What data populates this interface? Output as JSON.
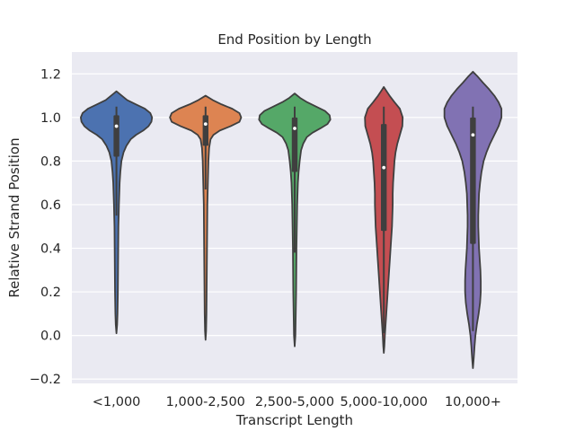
{
  "chart_data": {
    "type": "violin",
    "title": "End Position by Length",
    "xlabel": "Transcript Length",
    "ylabel": "Relative Strand Position",
    "ylim": [
      -0.22,
      1.3
    ],
    "yticks": [
      -0.2,
      0.0,
      0.2,
      0.4,
      0.6,
      0.8,
      1.0,
      1.2
    ],
    "ytick_labels": [
      "−0.2",
      "0.0",
      "0.2",
      "0.4",
      "0.6",
      "0.8",
      "1.0",
      "1.2"
    ],
    "grid": true,
    "background": "#eaeaf2",
    "categories": [
      "<1,000",
      "1,000-2,500",
      "2,500-5,000",
      "5,000-10,000",
      "10,000+"
    ],
    "violins": [
      {
        "category": "<1,000",
        "color": "#4c72b0",
        "min": 0.01,
        "max": 1.12,
        "whisker_low": 0.55,
        "whisker_high": 1.05,
        "q1": 0.82,
        "q3": 1.01,
        "median": 0.96,
        "profile": [
          [
            1.12,
            0.0
          ],
          [
            1.1,
            0.15
          ],
          [
            1.08,
            0.3
          ],
          [
            1.06,
            0.55
          ],
          [
            1.04,
            0.8
          ],
          [
            1.02,
            0.95
          ],
          [
            1.0,
            1.0
          ],
          [
            0.98,
            0.98
          ],
          [
            0.96,
            0.9
          ],
          [
            0.94,
            0.75
          ],
          [
            0.92,
            0.55
          ],
          [
            0.9,
            0.4
          ],
          [
            0.87,
            0.28
          ],
          [
            0.84,
            0.2
          ],
          [
            0.8,
            0.14
          ],
          [
            0.75,
            0.11
          ],
          [
            0.7,
            0.09
          ],
          [
            0.6,
            0.07
          ],
          [
            0.5,
            0.055
          ],
          [
            0.4,
            0.05
          ],
          [
            0.3,
            0.045
          ],
          [
            0.2,
            0.04
          ],
          [
            0.1,
            0.03
          ],
          [
            0.05,
            0.02
          ],
          [
            0.01,
            0.0
          ]
        ]
      },
      {
        "category": "1,000-2,500",
        "color": "#dd8452",
        "min": -0.02,
        "max": 1.1,
        "whisker_low": 0.67,
        "whisker_high": 1.05,
        "q1": 0.87,
        "q3": 1.01,
        "median": 0.97,
        "profile": [
          [
            1.1,
            0.0
          ],
          [
            1.08,
            0.2
          ],
          [
            1.06,
            0.45
          ],
          [
            1.04,
            0.75
          ],
          [
            1.02,
            0.95
          ],
          [
            1.0,
            1.0
          ],
          [
            0.98,
            0.95
          ],
          [
            0.96,
            0.7
          ],
          [
            0.94,
            0.4
          ],
          [
            0.92,
            0.22
          ],
          [
            0.9,
            0.14
          ],
          [
            0.86,
            0.1
          ],
          [
            0.8,
            0.08
          ],
          [
            0.7,
            0.065
          ],
          [
            0.6,
            0.05
          ],
          [
            0.5,
            0.045
          ],
          [
            0.4,
            0.04
          ],
          [
            0.3,
            0.035
          ],
          [
            0.2,
            0.03
          ],
          [
            0.1,
            0.025
          ],
          [
            0.02,
            0.015
          ],
          [
            -0.02,
            0.0
          ]
        ]
      },
      {
        "category": "2,500-5,000",
        "color": "#55a868",
        "min": -0.05,
        "max": 1.11,
        "whisker_low": 0.38,
        "whisker_high": 1.05,
        "q1": 0.75,
        "q3": 1.0,
        "median": 0.95,
        "profile": [
          [
            1.11,
            0.0
          ],
          [
            1.09,
            0.15
          ],
          [
            1.07,
            0.35
          ],
          [
            1.05,
            0.6
          ],
          [
            1.03,
            0.85
          ],
          [
            1.01,
            0.98
          ],
          [
            0.99,
            1.0
          ],
          [
            0.97,
            0.92
          ],
          [
            0.95,
            0.72
          ],
          [
            0.93,
            0.5
          ],
          [
            0.91,
            0.34
          ],
          [
            0.88,
            0.24
          ],
          [
            0.85,
            0.18
          ],
          [
            0.8,
            0.14
          ],
          [
            0.75,
            0.11
          ],
          [
            0.7,
            0.09
          ],
          [
            0.6,
            0.07
          ],
          [
            0.5,
            0.06
          ],
          [
            0.4,
            0.05
          ],
          [
            0.3,
            0.045
          ],
          [
            0.2,
            0.04
          ],
          [
            0.1,
            0.03
          ],
          [
            0.0,
            0.02
          ],
          [
            -0.05,
            0.0
          ]
        ]
      },
      {
        "category": "5,000-10,000",
        "color": "#c44e52",
        "min": -0.08,
        "max": 1.14,
        "whisker_low": 0.01,
        "whisker_high": 1.05,
        "q1": 0.48,
        "q3": 0.97,
        "median": 0.77,
        "profile": [
          [
            1.14,
            0.0
          ],
          [
            1.12,
            0.08
          ],
          [
            1.1,
            0.16
          ],
          [
            1.07,
            0.3
          ],
          [
            1.04,
            0.45
          ],
          [
            1.0,
            0.53
          ],
          [
            0.96,
            0.52
          ],
          [
            0.92,
            0.45
          ],
          [
            0.88,
            0.38
          ],
          [
            0.84,
            0.33
          ],
          [
            0.8,
            0.3
          ],
          [
            0.75,
            0.28
          ],
          [
            0.7,
            0.26
          ],
          [
            0.65,
            0.25
          ],
          [
            0.6,
            0.25
          ],
          [
            0.55,
            0.24
          ],
          [
            0.5,
            0.23
          ],
          [
            0.45,
            0.21
          ],
          [
            0.4,
            0.19
          ],
          [
            0.35,
            0.17
          ],
          [
            0.3,
            0.15
          ],
          [
            0.25,
            0.13
          ],
          [
            0.2,
            0.11
          ],
          [
            0.15,
            0.09
          ],
          [
            0.1,
            0.07
          ],
          [
            0.05,
            0.05
          ],
          [
            0.0,
            0.03
          ],
          [
            -0.05,
            0.015
          ],
          [
            -0.08,
            0.0
          ]
        ]
      },
      {
        "category": "10,000+",
        "color": "#8172b3",
        "min": -0.15,
        "max": 1.21,
        "whisker_low": 0.02,
        "whisker_high": 1.05,
        "q1": 0.42,
        "q3": 1.0,
        "median": 0.92,
        "profile": [
          [
            1.21,
            0.0
          ],
          [
            1.19,
            0.12
          ],
          [
            1.16,
            0.28
          ],
          [
            1.13,
            0.45
          ],
          [
            1.1,
            0.6
          ],
          [
            1.07,
            0.72
          ],
          [
            1.04,
            0.8
          ],
          [
            1.0,
            0.8
          ],
          [
            0.96,
            0.72
          ],
          [
            0.92,
            0.6
          ],
          [
            0.88,
            0.48
          ],
          [
            0.84,
            0.38
          ],
          [
            0.8,
            0.3
          ],
          [
            0.75,
            0.24
          ],
          [
            0.7,
            0.2
          ],
          [
            0.65,
            0.17
          ],
          [
            0.6,
            0.16
          ],
          [
            0.55,
            0.15
          ],
          [
            0.5,
            0.15
          ],
          [
            0.45,
            0.16
          ],
          [
            0.4,
            0.17
          ],
          [
            0.35,
            0.19
          ],
          [
            0.3,
            0.21
          ],
          [
            0.25,
            0.22
          ],
          [
            0.2,
            0.22
          ],
          [
            0.15,
            0.2
          ],
          [
            0.1,
            0.16
          ],
          [
            0.05,
            0.11
          ],
          [
            0.0,
            0.07
          ],
          [
            -0.05,
            0.045
          ],
          [
            -0.1,
            0.025
          ],
          [
            -0.15,
            0.0
          ]
        ]
      }
    ]
  }
}
